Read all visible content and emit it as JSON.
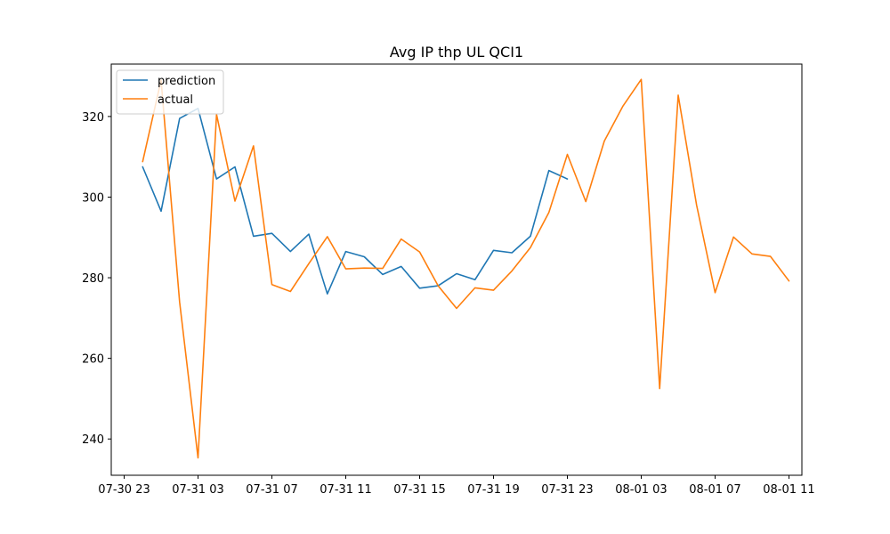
{
  "chart_data": {
    "type": "line",
    "title": "Avg IP thp UL QCI1",
    "xlabel": "",
    "ylabel": "",
    "x_axis": {
      "type": "datetime",
      "range": [
        "2023-07-30T22:18",
        "2023-08-01T11:42"
      ],
      "ticks": [
        {
          "t": "2023-07-30T23:00",
          "label": "07-30 23"
        },
        {
          "t": "2023-07-31T03:00",
          "label": "07-31 03"
        },
        {
          "t": "2023-07-31T07:00",
          "label": "07-31 07"
        },
        {
          "t": "2023-07-31T11:00",
          "label": "07-31 11"
        },
        {
          "t": "2023-07-31T15:00",
          "label": "07-31 15"
        },
        {
          "t": "2023-07-31T19:00",
          "label": "07-31 19"
        },
        {
          "t": "2023-07-31T23:00",
          "label": "07-31 23"
        },
        {
          "t": "2023-08-01T03:00",
          "label": "08-01 03"
        },
        {
          "t": "2023-08-01T07:00",
          "label": "08-01 07"
        },
        {
          "t": "2023-08-01T11:00",
          "label": "08-01 11"
        }
      ]
    },
    "y_axis": {
      "range": [
        231,
        333
      ],
      "ticks": [
        240,
        260,
        280,
        300,
        320
      ]
    },
    "grid": false,
    "legend": {
      "position": "top-left"
    },
    "series": [
      {
        "name": "prediction",
        "color": "#1f77b4",
        "x": [
          "2023-07-31T00:00",
          "2023-07-31T01:00",
          "2023-07-31T02:00",
          "2023-07-31T03:00",
          "2023-07-31T04:00",
          "2023-07-31T05:00",
          "2023-07-31T06:00",
          "2023-07-31T07:00",
          "2023-07-31T08:00",
          "2023-07-31T09:00",
          "2023-07-31T10:00",
          "2023-07-31T11:00",
          "2023-07-31T12:00",
          "2023-07-31T13:00",
          "2023-07-31T14:00",
          "2023-07-31T15:00",
          "2023-07-31T16:00",
          "2023-07-31T17:00",
          "2023-07-31T18:00",
          "2023-07-31T19:00",
          "2023-07-31T20:00",
          "2023-07-31T21:00",
          "2023-07-31T22:00",
          "2023-07-31T23:00"
        ],
        "y": [
          307.5,
          296.5,
          319.5,
          322.0,
          304.5,
          307.5,
          290.3,
          291.0,
          286.5,
          290.8,
          276.0,
          286.5,
          285.2,
          280.8,
          282.8,
          277.4,
          278.0,
          281.0,
          279.5,
          286.8,
          286.2,
          290.3,
          306.6,
          304.5
        ]
      },
      {
        "name": "actual",
        "color": "#ff7f0e",
        "x": [
          "2023-07-31T00:00",
          "2023-07-31T01:00",
          "2023-07-31T02:00",
          "2023-07-31T03:00",
          "2023-07-31T04:00",
          "2023-07-31T05:00",
          "2023-07-31T06:00",
          "2023-07-31T07:00",
          "2023-07-31T08:00",
          "2023-07-31T09:00",
          "2023-07-31T10:00",
          "2023-07-31T11:00",
          "2023-07-31T12:00",
          "2023-07-31T13:00",
          "2023-07-31T14:00",
          "2023-07-31T15:00",
          "2023-07-31T16:00",
          "2023-07-31T17:00",
          "2023-07-31T18:00",
          "2023-07-31T19:00",
          "2023-07-31T20:00",
          "2023-07-31T21:00",
          "2023-07-31T22:00",
          "2023-07-31T23:00",
          "2023-08-01T00:00",
          "2023-08-01T01:00",
          "2023-08-01T02:00",
          "2023-08-01T03:00",
          "2023-08-01T04:00",
          "2023-08-01T05:00",
          "2023-08-01T06:00",
          "2023-08-01T07:00",
          "2023-08-01T08:00",
          "2023-08-01T09:00",
          "2023-08-01T10:00",
          "2023-08-01T11:00"
        ],
        "y": [
          308.8,
          329.0,
          274.0,
          235.3,
          320.5,
          299.0,
          312.7,
          278.3,
          276.6,
          283.5,
          290.2,
          282.2,
          282.4,
          282.3,
          289.6,
          286.4,
          278.0,
          272.4,
          277.5,
          276.9,
          281.7,
          287.5,
          296.2,
          310.6,
          298.9,
          313.9,
          322.5,
          329.2,
          252.5,
          325.3,
          298.0,
          276.3,
          290.1,
          285.9,
          285.3,
          279.2
        ]
      }
    ]
  }
}
